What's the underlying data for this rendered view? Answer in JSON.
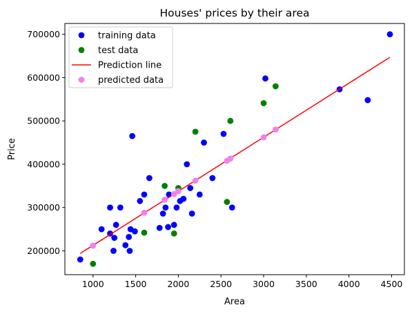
{
  "chart_data": {
    "type": "scatter",
    "title": "Houses' prices by their area",
    "xlabel": "Area",
    "ylabel": "Price",
    "xlim": [
      670,
      4650
    ],
    "ylim": [
      145000,
      725000
    ],
    "xticks": [
      1000,
      1500,
      2000,
      2500,
      3000,
      3500,
      4000,
      4500
    ],
    "yticks": [
      200000,
      300000,
      400000,
      500000,
      600000,
      700000
    ],
    "legend_position": "upper-left",
    "grid": false,
    "series": [
      {
        "name": "training data",
        "kind": "scatter",
        "color": "#0000ff",
        "points": [
          [
            850,
            180000
          ],
          [
            1100,
            250000
          ],
          [
            1200,
            240000
          ],
          [
            1200,
            300000
          ],
          [
            1240,
            200000
          ],
          [
            1250,
            230000
          ],
          [
            1270,
            260000
          ],
          [
            1320,
            300000
          ],
          [
            1380,
            213000
          ],
          [
            1420,
            232000
          ],
          [
            1430,
            200000
          ],
          [
            1440,
            250000
          ],
          [
            1460,
            465000
          ],
          [
            1490,
            245000
          ],
          [
            1550,
            315000
          ],
          [
            1600,
            330000
          ],
          [
            1660,
            368000
          ],
          [
            1780,
            253000
          ],
          [
            1820,
            286000
          ],
          [
            1850,
            300000
          ],
          [
            1880,
            255000
          ],
          [
            1890,
            330000
          ],
          [
            1950,
            260000
          ],
          [
            1980,
            300000
          ],
          [
            2020,
            315000
          ],
          [
            2060,
            320000
          ],
          [
            2100,
            400000
          ],
          [
            2140,
            345000
          ],
          [
            2160,
            286000
          ],
          [
            2250,
            330000
          ],
          [
            2300,
            450000
          ],
          [
            2400,
            368000
          ],
          [
            2530,
            470000
          ],
          [
            2630,
            300000
          ],
          [
            3020,
            598000
          ],
          [
            3890,
            573000
          ],
          [
            4220,
            548000
          ],
          [
            4480,
            700000
          ]
        ]
      },
      {
        "name": "test data",
        "kind": "scatter",
        "color": "#008000",
        "points": [
          [
            1000,
            170000
          ],
          [
            1600,
            242000
          ],
          [
            1840,
            350000
          ],
          [
            1950,
            240000
          ],
          [
            2000,
            345000
          ],
          [
            2200,
            475000
          ],
          [
            2570,
            313000
          ],
          [
            2610,
            500000
          ],
          [
            3000,
            541000
          ],
          [
            3140,
            580000
          ]
        ]
      },
      {
        "name": "Prediction line",
        "kind": "line",
        "color": "#ff0000",
        "points": [
          [
            850,
            194000
          ],
          [
            4480,
            647000
          ]
        ]
      },
      {
        "name": "predicted data",
        "kind": "scatter",
        "color": "#ee82ee",
        "points": [
          [
            1000,
            212000
          ],
          [
            1600,
            288000
          ],
          [
            1840,
            318000
          ],
          [
            1950,
            331000
          ],
          [
            2000,
            338000
          ],
          [
            2200,
            362000
          ],
          [
            2570,
            408000
          ],
          [
            2610,
            413000
          ],
          [
            3000,
            462000
          ],
          [
            3140,
            480000
          ]
        ]
      }
    ]
  }
}
